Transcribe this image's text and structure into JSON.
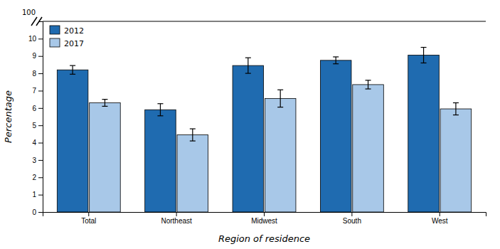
{
  "chart_data": {
    "type": "bar",
    "xlabel": "Region of residence",
    "ylabel": "Percentage",
    "categories": [
      "Total",
      "Northeast",
      "Midwest",
      "South",
      "West"
    ],
    "series": [
      {
        "name": "2012",
        "color": "#1f6bb0",
        "values": [
          8.2,
          5.9,
          8.45,
          8.75,
          9.05
        ],
        "errors": [
          0.25,
          0.35,
          0.45,
          0.2,
          0.45
        ]
      },
      {
        "name": "2017",
        "color": "#a8c8e8",
        "values": [
          6.3,
          4.45,
          6.55,
          7.35,
          5.95
        ],
        "errors": [
          0.2,
          0.35,
          0.5,
          0.25,
          0.35
        ]
      }
    ],
    "ylim": [
      0,
      11
    ],
    "yticks": [
      0,
      1,
      2,
      3,
      4,
      5,
      6,
      7,
      8,
      9,
      10
    ],
    "legend": "upper left",
    "grid": false,
    "annotations": [
      {
        "text": "100"
      }
    ]
  }
}
